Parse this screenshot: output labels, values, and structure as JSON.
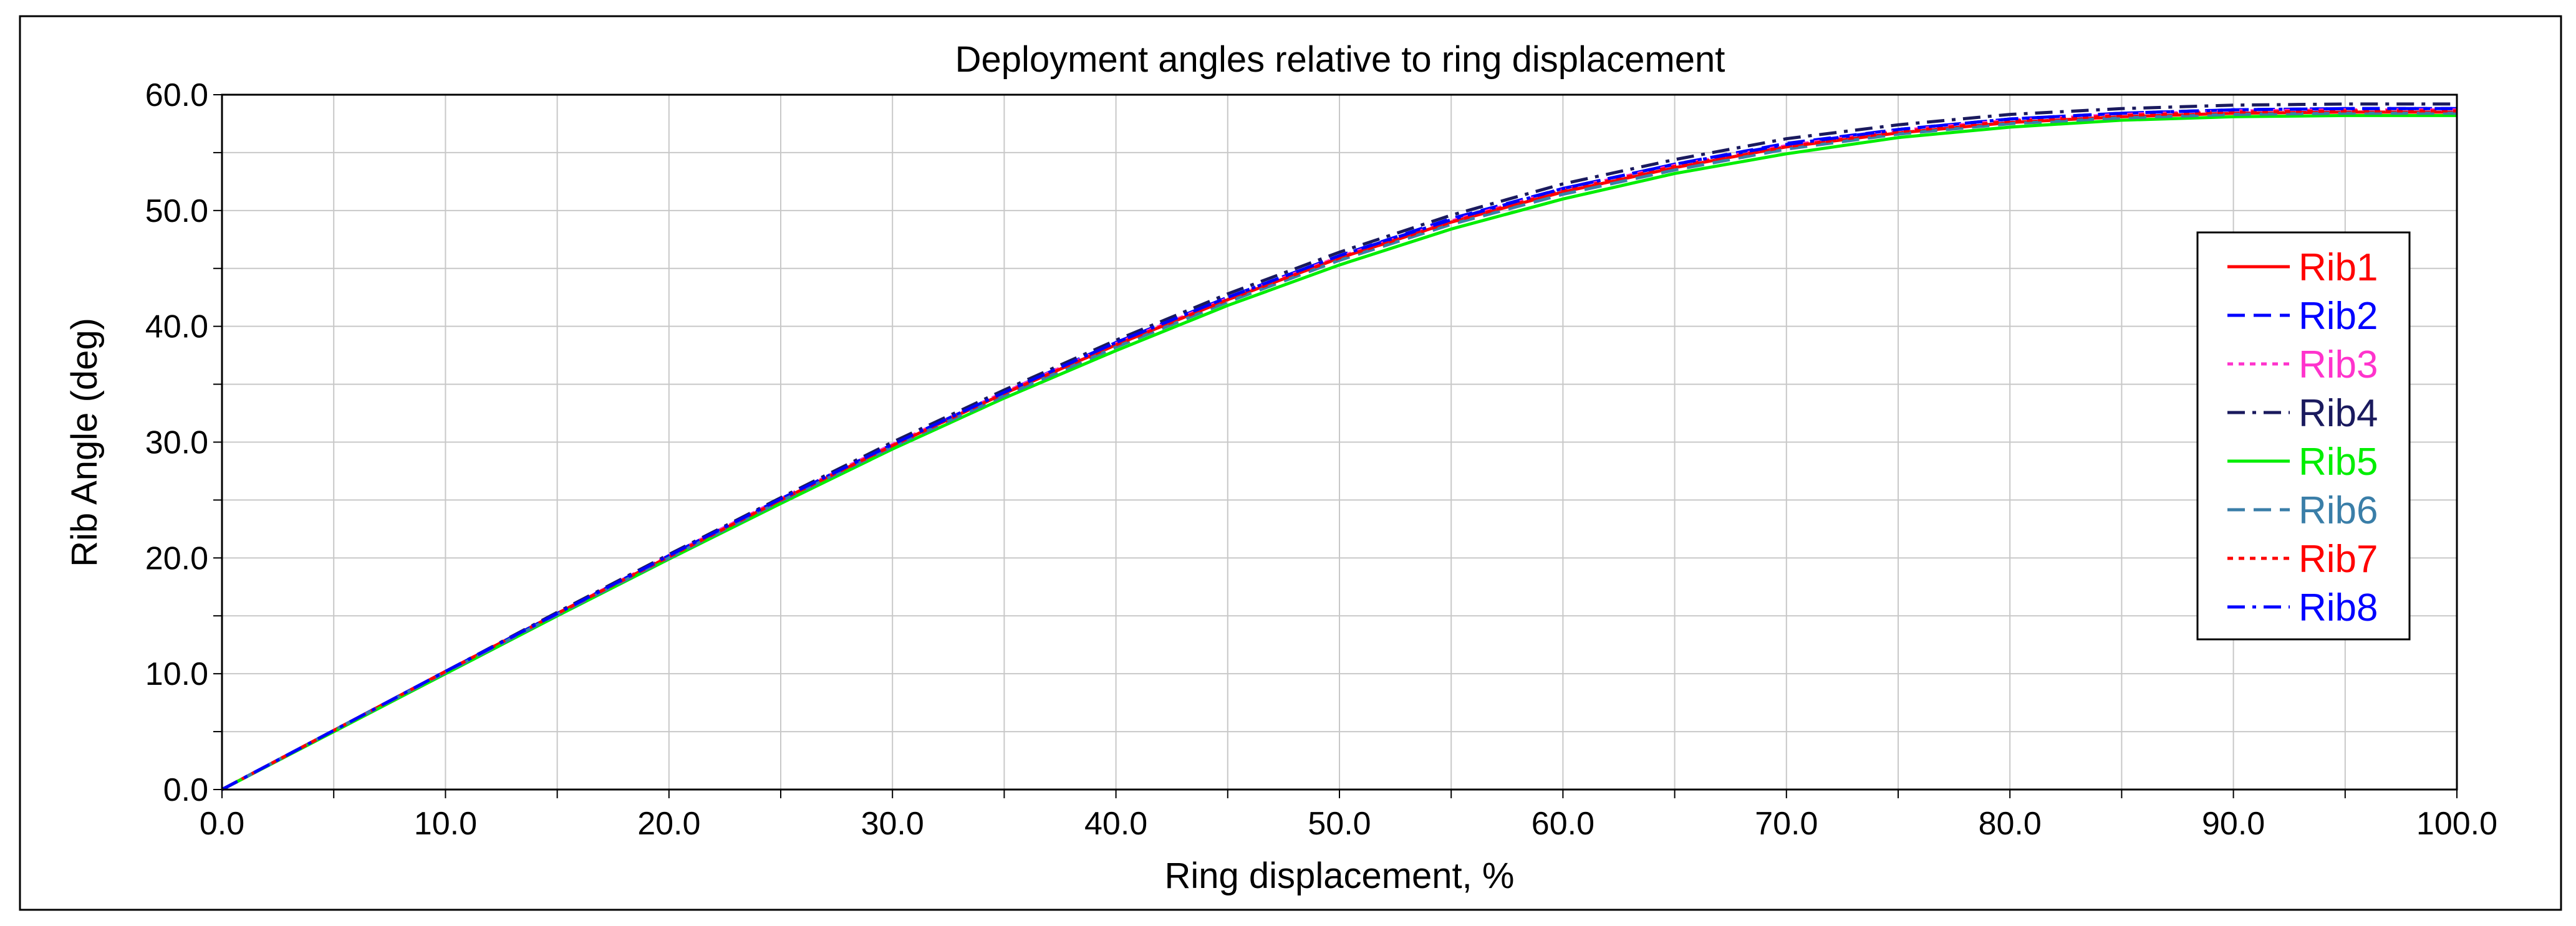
{
  "chart_data": {
    "type": "line",
    "title": "Deployment angles relative to ring displacement",
    "xlabel": "Ring displacement, %",
    "ylabel": "Rib Angle (deg)",
    "xlim": [
      0,
      100
    ],
    "ylim": [
      0,
      60
    ],
    "grid": true,
    "legend_position": "right",
    "x_ticks": [
      "0.0",
      "10.0",
      "20.0",
      "30.0",
      "40.0",
      "50.0",
      "60.0",
      "70.0",
      "80.0",
      "90.0",
      "100.0"
    ],
    "y_ticks": [
      "0.0",
      "10.0",
      "20.0",
      "30.0",
      "40.0",
      "50.0",
      "60.0"
    ],
    "x": [
      0,
      5,
      10,
      15,
      20,
      25,
      30,
      35,
      40,
      45,
      50,
      55,
      60,
      65,
      70,
      75,
      80,
      85,
      90,
      95,
      100
    ],
    "series": [
      {
        "name": "Rib1",
        "color": "#ff0000",
        "dash": "solid",
        "values": [
          0,
          5.1,
          10.2,
          15.2,
          20.1,
          25.0,
          29.7,
          34.2,
          38.4,
          42.3,
          45.9,
          49.0,
          51.6,
          53.7,
          55.5,
          56.7,
          57.6,
          58.1,
          58.4,
          58.5,
          58.5
        ]
      },
      {
        "name": "Rib2",
        "color": "#0000ff",
        "dash": "dashed",
        "values": [
          0,
          5.1,
          10.2,
          15.2,
          20.2,
          25.1,
          29.8,
          34.3,
          38.6,
          42.5,
          46.1,
          49.3,
          51.9,
          54.0,
          55.8,
          57.0,
          57.9,
          58.4,
          58.7,
          58.8,
          58.8
        ]
      },
      {
        "name": "Rib3",
        "color": "#ff33cc",
        "dash": "dotted",
        "values": [
          0,
          5.1,
          10.2,
          15.2,
          20.2,
          25.1,
          29.8,
          34.3,
          38.5,
          42.4,
          46.0,
          49.1,
          51.8,
          53.9,
          55.6,
          56.9,
          57.8,
          58.3,
          58.6,
          58.7,
          58.7
        ]
      },
      {
        "name": "Rib4",
        "color": "#1a1a5e",
        "dash": "dashdot",
        "values": [
          0,
          5.1,
          10.2,
          15.3,
          20.3,
          25.2,
          30.0,
          34.5,
          38.8,
          42.8,
          46.4,
          49.6,
          52.3,
          54.4,
          56.2,
          57.4,
          58.3,
          58.8,
          59.1,
          59.2,
          59.2
        ]
      },
      {
        "name": "Rib5",
        "color": "#00ee00",
        "dash": "solid",
        "values": [
          0,
          5.0,
          10.0,
          15.0,
          19.9,
          24.7,
          29.4,
          33.8,
          37.9,
          41.8,
          45.3,
          48.4,
          51.0,
          53.2,
          54.9,
          56.3,
          57.2,
          57.8,
          58.1,
          58.2,
          58.2
        ]
      },
      {
        "name": "Rib6",
        "color": "#3a7ea8",
        "dash": "dashed",
        "values": [
          0,
          5.1,
          10.1,
          15.1,
          20.0,
          24.9,
          29.6,
          34.0,
          38.2,
          42.1,
          45.7,
          48.8,
          51.4,
          53.5,
          55.3,
          56.6,
          57.5,
          58.0,
          58.3,
          58.4,
          58.4
        ]
      },
      {
        "name": "Rib7",
        "color": "#ff0000",
        "dash": "dotted",
        "values": [
          0,
          5.1,
          10.2,
          15.2,
          20.1,
          25.0,
          29.7,
          34.2,
          38.4,
          42.3,
          45.9,
          49.0,
          51.7,
          53.8,
          55.5,
          56.8,
          57.7,
          58.2,
          58.5,
          58.6,
          58.6
        ]
      },
      {
        "name": "Rib8",
        "color": "#0000ff",
        "dash": "dashdot",
        "values": [
          0,
          5.1,
          10.2,
          15.2,
          20.2,
          25.1,
          29.8,
          34.3,
          38.6,
          42.5,
          46.1,
          49.2,
          51.9,
          54.0,
          55.7,
          57.0,
          57.9,
          58.4,
          58.7,
          58.8,
          58.8
        ]
      }
    ]
  }
}
